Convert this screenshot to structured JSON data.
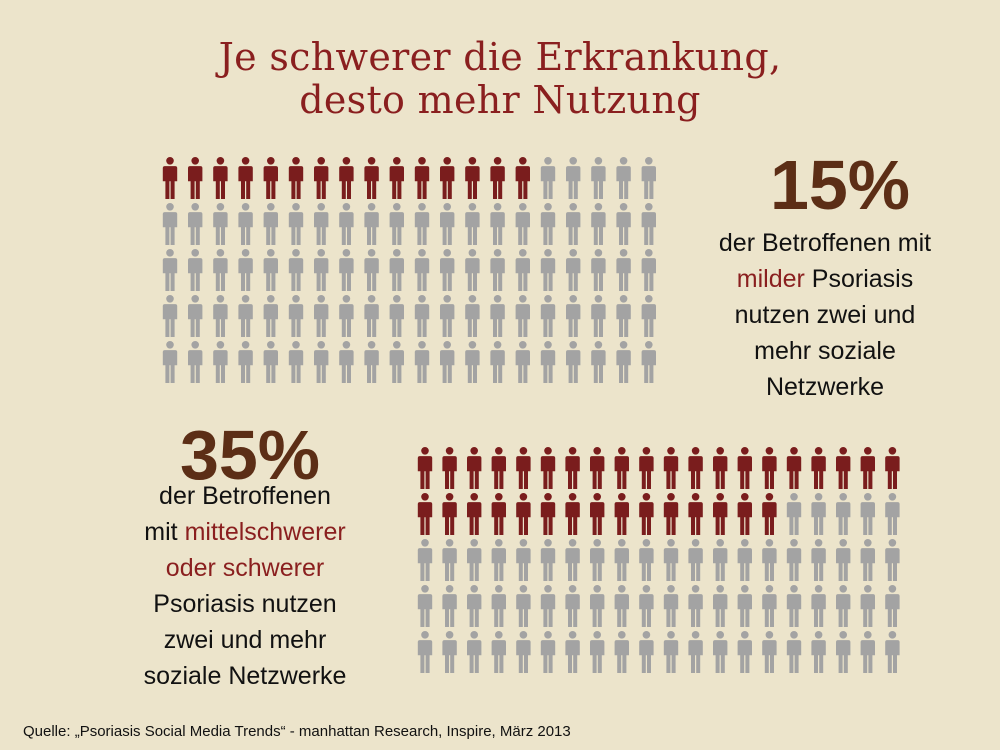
{
  "title": {
    "line1": "Je schwerer die Erkrankung,",
    "line2": "desto mehr Nutzung"
  },
  "chart_data": [
    {
      "type": "pictogram",
      "value_percent": 15,
      "total_icons": 100,
      "highlighted_icons": 15,
      "highlight_color": "#7a1d1d",
      "base_color": "#a3a3a3",
      "value_label": "15%",
      "description": {
        "line1": "der Betroffenen mit",
        "line2_highlight": "milder",
        "line2_rest": " Psoriasis",
        "line3": "nutzen zwei und",
        "line4": "mehr soziale",
        "line5": "Netzwerke"
      }
    },
    {
      "type": "pictogram",
      "value_percent": 35,
      "total_icons": 100,
      "highlighted_icons": 35,
      "highlight_color": "#7a1d1d",
      "base_color": "#a3a3a3",
      "value_label": "35%",
      "description": {
        "line1": "der Betroffenen",
        "line2_prefix": "mit ",
        "line2_highlight": "mittelschwerer",
        "line3_highlight": "oder schwerer",
        "line4": "Psoriasis nutzen",
        "line5": "zwei und mehr",
        "line6": "soziale Netzwerke"
      }
    }
  ],
  "source": "Quelle: „Psoriasis Social Media Trends“ - manhattan Research, Inspire, März 2013"
}
